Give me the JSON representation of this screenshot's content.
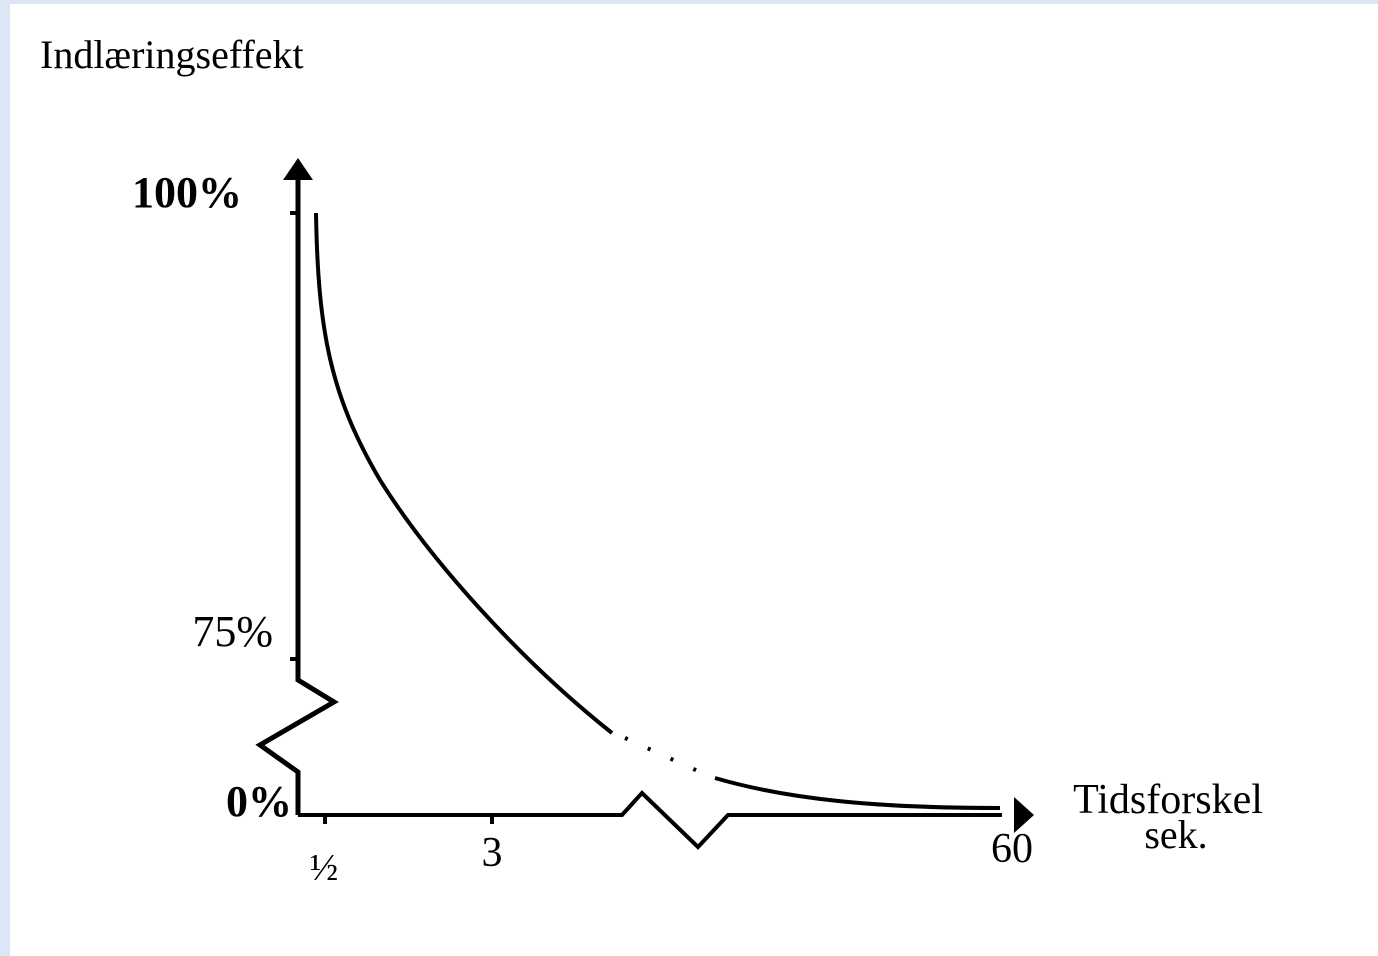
{
  "colors": {
    "frame_edge": "#dce6f7",
    "ink": "#000000",
    "background": "#ffffff"
  },
  "chart_data": {
    "type": "line",
    "title": "",
    "ylabel": "Indlæringseffekt",
    "xlabel_line1": "Tidsforskel",
    "xlabel_line2": "sek.",
    "y_tick_labels": [
      "100%",
      "75%",
      "0%"
    ],
    "y_ticks": [
      100,
      75,
      0
    ],
    "x_tick_labels": [
      "½",
      "3",
      "60"
    ],
    "x_ticks": [
      0.5,
      3,
      60
    ],
    "axis_breaks": [
      "y between 0% and 75%",
      "x between 3 and 60"
    ],
    "legend": "none",
    "grid": false,
    "series": [
      {
        "style": "solid curve, dotted across x-axis break",
        "x": [
          0.5,
          1,
          1.5,
          2,
          2.5,
          3,
          60
        ],
        "y": [
          99,
          95,
          90,
          85.5,
          81.5,
          78.5,
          0.3
        ]
      }
    ]
  }
}
